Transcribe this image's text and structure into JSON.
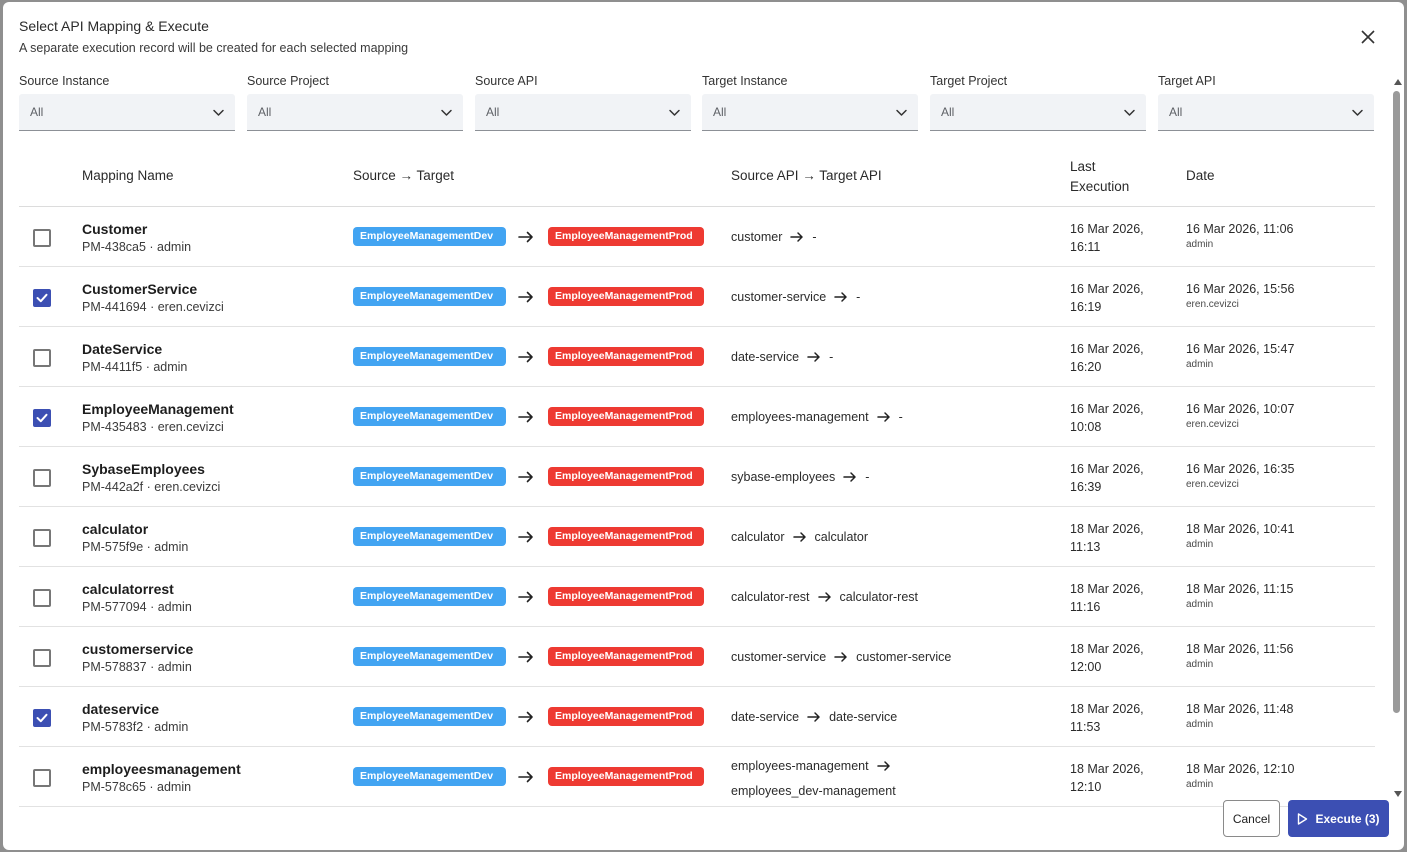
{
  "dialog": {
    "title": "Select API Mapping & Execute",
    "subtitle": "A separate execution record will be created for each selected mapping"
  },
  "filters": [
    {
      "label": "Source Instance",
      "value": "All"
    },
    {
      "label": "Source Project",
      "value": "All"
    },
    {
      "label": "Source API",
      "value": "All"
    },
    {
      "label": "Target Instance",
      "value": "All"
    },
    {
      "label": "Target Project",
      "value": "All"
    },
    {
      "label": "Target API",
      "value": "All"
    }
  ],
  "table": {
    "headers": {
      "mapping_name": "Mapping Name",
      "source_target": "Source → Target",
      "source_api_target_api": "Source API → Target API",
      "last_execution": "Last Execution",
      "date": "Date"
    },
    "rows": [
      {
        "checked": false,
        "name": "Customer",
        "meta": "PM-438ca5 · admin",
        "source": "EmployeeManagementDev",
        "target": "EmployeeManagementProd",
        "source_api": "customer",
        "target_api": "-",
        "last_execution": "16 Mar 2026, 16:11",
        "date": "16 Mar 2026, 11:06",
        "date_user": "admin"
      },
      {
        "checked": true,
        "name": "CustomerService",
        "meta": "PM-441694 · eren.cevizci",
        "source": "EmployeeManagementDev",
        "target": "EmployeeManagementProd",
        "source_api": "customer-service",
        "target_api": "-",
        "last_execution": "16 Mar 2026, 16:19",
        "date": "16 Mar 2026, 15:56",
        "date_user": "eren.cevizci"
      },
      {
        "checked": false,
        "name": "DateService",
        "meta": "PM-4411f5 · admin",
        "source": "EmployeeManagementDev",
        "target": "EmployeeManagementProd",
        "source_api": "date-service",
        "target_api": "-",
        "last_execution": "16 Mar 2026, 16:20",
        "date": "16 Mar 2026, 15:47",
        "date_user": "admin"
      },
      {
        "checked": true,
        "name": "EmployeeManagement",
        "meta": "PM-435483 · eren.cevizci",
        "source": "EmployeeManagementDev",
        "target": "EmployeeManagementProd",
        "source_api": "employees-management",
        "target_api": "-",
        "last_execution": "16 Mar 2026, 10:08",
        "date": "16 Mar 2026, 10:07",
        "date_user": "eren.cevizci"
      },
      {
        "checked": false,
        "name": "SybaseEmployees",
        "meta": "PM-442a2f · eren.cevizci",
        "source": "EmployeeManagementDev",
        "target": "EmployeeManagementProd",
        "source_api": "sybase-employees",
        "target_api": "-",
        "last_execution": "16 Mar 2026, 16:39",
        "date": "16 Mar 2026, 16:35",
        "date_user": "eren.cevizci"
      },
      {
        "checked": false,
        "name": "calculator",
        "meta": "PM-575f9e · admin",
        "source": "EmployeeManagementDev",
        "target": "EmployeeManagementProd",
        "source_api": "calculator",
        "target_api": "calculator",
        "last_execution": "18 Mar 2026, 11:13",
        "date": "18 Mar 2026, 10:41",
        "date_user": "admin"
      },
      {
        "checked": false,
        "name": "calculatorrest",
        "meta": "PM-577094 · admin",
        "source": "EmployeeManagementDev",
        "target": "EmployeeManagementProd",
        "source_api": "calculator-rest",
        "target_api": "calculator-rest",
        "last_execution": "18 Mar 2026, 11:16",
        "date": "18 Mar 2026, 11:15",
        "date_user": "admin"
      },
      {
        "checked": false,
        "name": "customerservice",
        "meta": "PM-578837 · admin",
        "source": "EmployeeManagementDev",
        "target": "EmployeeManagementProd",
        "source_api": "customer-service",
        "target_api": "customer-service",
        "last_execution": "18 Mar 2026, 12:00",
        "date": "18 Mar 2026, 11:56",
        "date_user": "admin"
      },
      {
        "checked": true,
        "name": "dateservice",
        "meta": "PM-5783f2 · admin",
        "source": "EmployeeManagementDev",
        "target": "EmployeeManagementProd",
        "source_api": "date-service",
        "target_api": "date-service",
        "last_execution": "18 Mar 2026, 11:53",
        "date": "18 Mar 2026, 11:48",
        "date_user": "admin"
      },
      {
        "checked": false,
        "name": "employeesmanagement",
        "meta": "PM-578c65 · admin",
        "source": "EmployeeManagementDev",
        "target": "EmployeeManagementProd",
        "source_api": "employees-management",
        "target_api": "employees_dev-management",
        "last_execution": "18 Mar 2026, 12:10",
        "date": "18 Mar 2026, 12:10",
        "date_user": "admin",
        "wrapped_api": true
      }
    ]
  },
  "footer": {
    "cancel_label": "Cancel",
    "execute_label": "Execute (3)"
  },
  "colors": {
    "accent": "#3c4fb3",
    "source_chip": "#42a4f2",
    "target_chip": "#ee3a32"
  },
  "icons": {
    "close": "close-icon",
    "dropdown": "chevron-down-icon",
    "arrow": "arrow-right-icon",
    "check": "check-icon",
    "execute": "play-icon"
  }
}
